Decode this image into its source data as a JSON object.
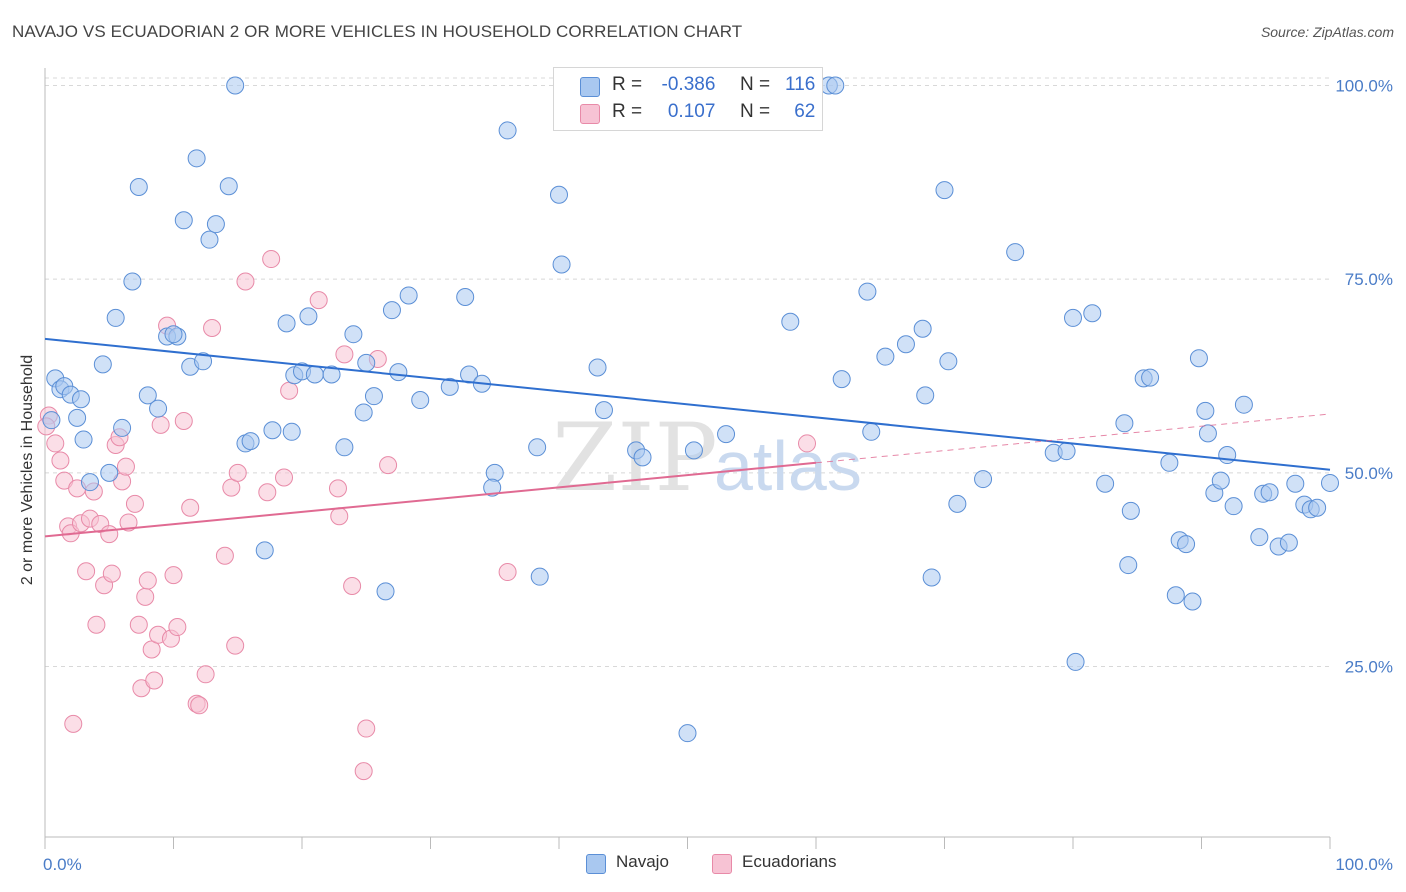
{
  "header": {
    "title": "NAVAJO VS ECUADORIAN 2 OR MORE VEHICLES IN HOUSEHOLD CORRELATION CHART",
    "source": "Source: ZipAtlas.com"
  },
  "watermark": {
    "zip": "ZIP",
    "atlas": "atlas"
  },
  "legend_top": {
    "rows": [
      {
        "r_label": "R =",
        "r_value": "-0.386",
        "n_label": "N =",
        "n_value": "116"
      },
      {
        "r_label": "R =",
        "r_value": "0.107",
        "n_label": "N =",
        "n_value": "62"
      }
    ]
  },
  "legend_bottom": {
    "items": [
      {
        "label": "Navajo"
      },
      {
        "label": "Ecuadorians"
      }
    ]
  },
  "colors": {
    "navajo_fill": "#a9c8f0",
    "navajo_stroke": "#5b8fd6",
    "navajo_line": "#2f6fcf",
    "ecuador_fill": "#f7c3d4",
    "ecuador_stroke": "#e88aa8",
    "ecuador_line": "#e06a92",
    "grid": "#d8d8d8",
    "tick_text": "#4a7cc7"
  },
  "chart_data": {
    "type": "scatter",
    "title": "NAVAJO VS ECUADORIAN 2 OR MORE VEHICLES IN HOUSEHOLD CORRELATION CHART",
    "xlabel": "",
    "ylabel": "2 or more Vehicles in Household",
    "xlim": [
      0,
      100
    ],
    "ylim": [
      3,
      102
    ],
    "x_tick_labels": [
      "0.0%",
      "100.0%"
    ],
    "y_ticks": [
      25,
      50,
      75,
      100
    ],
    "y_tick_labels": [
      "25.0%",
      "50.0%",
      "75.0%",
      "100.0%"
    ],
    "grid": true,
    "legend_position": "top-center",
    "series": [
      {
        "name": "Navajo",
        "r": -0.386,
        "n": 116,
        "trend": {
          "x": [
            0,
            100
          ],
          "y": [
            67.3,
            50.4
          ]
        },
        "points": [
          [
            0.5,
            56.8
          ],
          [
            0.8,
            62.2
          ],
          [
            1.2,
            60.8
          ],
          [
            1.5,
            61.2
          ],
          [
            2.0,
            60.1
          ],
          [
            2.5,
            57.1
          ],
          [
            2.8,
            59.5
          ],
          [
            3.0,
            54.3
          ],
          [
            3.5,
            48.8
          ],
          [
            4.5,
            64.0
          ],
          [
            5.0,
            50.0
          ],
          [
            5.5,
            70.0
          ],
          [
            6.0,
            55.8
          ],
          [
            6.8,
            74.7
          ],
          [
            7.3,
            86.9
          ],
          [
            8.0,
            60.0
          ],
          [
            8.8,
            58.3
          ],
          [
            9.5,
            67.6
          ],
          [
            10.3,
            67.6
          ],
          [
            10.0,
            67.9
          ],
          [
            10.8,
            82.6
          ],
          [
            11.3,
            63.7
          ],
          [
            11.8,
            90.6
          ],
          [
            12.3,
            64.4
          ],
          [
            12.8,
            80.1
          ],
          [
            13.3,
            82.1
          ],
          [
            14.3,
            87.0
          ],
          [
            14.8,
            100.0
          ],
          [
            15.6,
            53.8
          ],
          [
            16.0,
            54.1
          ],
          [
            17.1,
            40.0
          ],
          [
            17.7,
            55.5
          ],
          [
            18.8,
            69.3
          ],
          [
            19.2,
            55.3
          ],
          [
            19.4,
            62.6
          ],
          [
            20.0,
            63.1
          ],
          [
            20.5,
            70.2
          ],
          [
            21.0,
            62.7
          ],
          [
            22.3,
            62.7
          ],
          [
            23.3,
            53.3
          ],
          [
            24.0,
            67.9
          ],
          [
            24.8,
            57.8
          ],
          [
            25.0,
            64.2
          ],
          [
            25.6,
            59.9
          ],
          [
            26.5,
            34.7
          ],
          [
            27.0,
            71.0
          ],
          [
            27.5,
            63.0
          ],
          [
            28.3,
            72.9
          ],
          [
            29.2,
            59.4
          ],
          [
            31.5,
            61.1
          ],
          [
            32.7,
            72.7
          ],
          [
            33.0,
            62.7
          ],
          [
            34.0,
            61.5
          ],
          [
            35.0,
            50.0
          ],
          [
            34.8,
            48.1
          ],
          [
            36.0,
            94.2
          ],
          [
            38.3,
            53.3
          ],
          [
            38.5,
            36.6
          ],
          [
            40.0,
            85.9
          ],
          [
            40.2,
            76.9
          ],
          [
            43.0,
            63.6
          ],
          [
            43.5,
            58.1
          ],
          [
            46.0,
            52.9
          ],
          [
            46.5,
            52.0
          ],
          [
            50.0,
            16.4
          ],
          [
            50.5,
            52.9
          ],
          [
            53.0,
            55.0
          ],
          [
            58.0,
            69.5
          ],
          [
            61.0,
            100.0
          ],
          [
            61.5,
            100.0
          ],
          [
            62.0,
            62.1
          ],
          [
            64.0,
            73.4
          ],
          [
            64.3,
            55.3
          ],
          [
            65.4,
            65.0
          ],
          [
            67.0,
            66.6
          ],
          [
            68.3,
            68.6
          ],
          [
            68.5,
            60.0
          ],
          [
            69.0,
            36.5
          ],
          [
            70.0,
            86.5
          ],
          [
            70.3,
            64.4
          ],
          [
            71.0,
            46.0
          ],
          [
            73.0,
            49.2
          ],
          [
            75.5,
            78.5
          ],
          [
            78.5,
            52.6
          ],
          [
            79.5,
            52.8
          ],
          [
            80.0,
            70.0
          ],
          [
            80.2,
            25.6
          ],
          [
            81.5,
            70.6
          ],
          [
            82.5,
            48.6
          ],
          [
            84.0,
            56.4
          ],
          [
            84.3,
            38.1
          ],
          [
            85.5,
            62.2
          ],
          [
            86.0,
            62.3
          ],
          [
            87.5,
            51.3
          ],
          [
            88.0,
            34.2
          ],
          [
            88.3,
            41.3
          ],
          [
            88.8,
            40.8
          ],
          [
            89.3,
            33.4
          ],
          [
            89.8,
            64.8
          ],
          [
            90.3,
            58.0
          ],
          [
            90.5,
            55.1
          ],
          [
            91.0,
            47.4
          ],
          [
            91.5,
            49.0
          ],
          [
            92.0,
            52.3
          ],
          [
            92.5,
            45.7
          ],
          [
            93.3,
            58.8
          ],
          [
            94.5,
            41.7
          ],
          [
            94.8,
            47.3
          ],
          [
            95.3,
            47.5
          ],
          [
            96.0,
            40.5
          ],
          [
            96.8,
            41.0
          ],
          [
            97.3,
            48.6
          ],
          [
            98.0,
            45.9
          ],
          [
            98.5,
            45.3
          ],
          [
            99.0,
            45.5
          ],
          [
            100.0,
            48.7
          ],
          [
            84.5,
            45.1
          ]
        ]
      },
      {
        "name": "Ecuadorians",
        "r": 0.107,
        "n": 62,
        "trend": {
          "x": [
            0,
            60
          ],
          "y": [
            41.8,
            51.3
          ]
        },
        "trend_dashed": {
          "x": [
            60,
            100
          ],
          "y": [
            51.3,
            57.6
          ]
        },
        "points": [
          [
            0.3,
            57.4
          ],
          [
            0.8,
            53.8
          ],
          [
            1.2,
            51.6
          ],
          [
            1.5,
            49.0
          ],
          [
            1.8,
            43.1
          ],
          [
            2.0,
            42.2
          ],
          [
            2.2,
            17.6
          ],
          [
            2.5,
            48.0
          ],
          [
            2.8,
            43.5
          ],
          [
            3.2,
            37.3
          ],
          [
            3.5,
            44.1
          ],
          [
            3.8,
            47.6
          ],
          [
            4.0,
            30.4
          ],
          [
            4.3,
            43.4
          ],
          [
            4.6,
            35.5
          ],
          [
            5.0,
            42.1
          ],
          [
            5.2,
            37.0
          ],
          [
            5.5,
            53.6
          ],
          [
            5.8,
            54.6
          ],
          [
            6.0,
            48.9
          ],
          [
            6.3,
            50.8
          ],
          [
            6.5,
            43.6
          ],
          [
            7.0,
            46.0
          ],
          [
            7.3,
            30.4
          ],
          [
            7.5,
            22.2
          ],
          [
            7.8,
            34.0
          ],
          [
            8.0,
            36.1
          ],
          [
            8.3,
            27.2
          ],
          [
            8.5,
            23.2
          ],
          [
            8.8,
            29.1
          ],
          [
            9.0,
            56.2
          ],
          [
            9.5,
            69.0
          ],
          [
            9.8,
            28.6
          ],
          [
            10.0,
            36.8
          ],
          [
            10.3,
            30.1
          ],
          [
            10.8,
            56.7
          ],
          [
            11.3,
            45.5
          ],
          [
            11.8,
            20.2
          ],
          [
            12.0,
            20.0
          ],
          [
            12.5,
            24.0
          ],
          [
            13.0,
            68.7
          ],
          [
            14.0,
            39.3
          ],
          [
            14.5,
            48.1
          ],
          [
            14.8,
            27.7
          ],
          [
            15.0,
            50.0
          ],
          [
            15.6,
            74.7
          ],
          [
            17.3,
            47.5
          ],
          [
            17.6,
            77.6
          ],
          [
            18.6,
            49.4
          ],
          [
            19.0,
            60.6
          ],
          [
            21.3,
            72.3
          ],
          [
            22.8,
            48.0
          ],
          [
            22.9,
            44.4
          ],
          [
            23.3,
            65.3
          ],
          [
            23.9,
            35.4
          ],
          [
            24.8,
            11.5
          ],
          [
            25.0,
            17.0
          ],
          [
            25.9,
            64.7
          ],
          [
            26.7,
            51.0
          ],
          [
            36.0,
            37.2
          ],
          [
            59.3,
            53.8
          ],
          [
            0.1,
            56.0
          ]
        ]
      }
    ]
  }
}
